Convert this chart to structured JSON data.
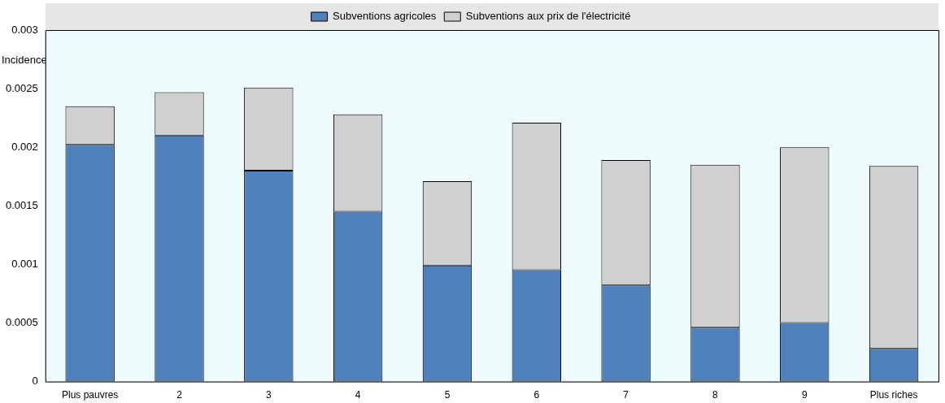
{
  "chart_data": {
    "type": "bar",
    "stacked": true,
    "ylabel": "Incidence",
    "categories": [
      "Plus pauvres",
      "2",
      "3",
      "4",
      "5",
      "6",
      "7",
      "8",
      "9",
      "Plus riches"
    ],
    "series": [
      {
        "name": "Subventions agricoles",
        "color": "#4f81bd",
        "values": [
          0.00202,
          0.0021,
          0.0018,
          0.00145,
          0.00099,
          0.00095,
          0.00082,
          0.00046,
          0.0005,
          0.00028
        ]
      },
      {
        "name": "Subventions aux prix de l'électricité",
        "color": "#d0d0d0",
        "values": [
          0.00033,
          0.00037,
          0.00071,
          0.00083,
          0.00072,
          0.00126,
          0.00107,
          0.00139,
          0.0015,
          0.00156
        ]
      }
    ],
    "ylim": [
      0,
      0.003
    ],
    "yticks": [
      0,
      0.0005,
      0.001,
      0.0015,
      0.002,
      0.0025,
      0.003
    ],
    "grid": false,
    "legend": "top"
  }
}
